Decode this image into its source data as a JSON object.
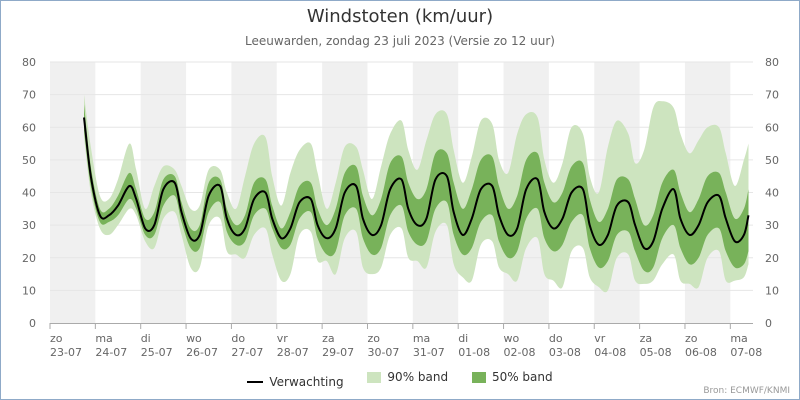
{
  "header": {
    "title": "Windstoten (km/uur)",
    "subtitle": "Leeuwarden, zondag 23 juli 2023 (Versie zo 12 uur)"
  },
  "footer": {
    "source": "Bron: ECMWF/KNMI"
  },
  "colors": {
    "median": "#000000",
    "band90": "#cde4bf",
    "band50": "#78b25a",
    "weekend": "#f0f0f0",
    "grid": "#e6e6e6"
  },
  "chart_data": {
    "type": "area",
    "ylim": [
      0,
      80
    ],
    "yticks": [
      0,
      10,
      20,
      30,
      40,
      50,
      60,
      70,
      80
    ],
    "xlim": [
      0,
      15.5
    ],
    "x_unit": "days from 23-07",
    "xticks": [
      {
        "day": "zo",
        "date": "23-07"
      },
      {
        "day": "ma",
        "date": "24-07"
      },
      {
        "day": "di",
        "date": "25-07"
      },
      {
        "day": "wo",
        "date": "26-07"
      },
      {
        "day": "do",
        "date": "27-07"
      },
      {
        "day": "vr",
        "date": "28-07"
      },
      {
        "day": "za",
        "date": "29-07"
      },
      {
        "day": "zo",
        "date": "30-07"
      },
      {
        "day": "ma",
        "date": "31-07"
      },
      {
        "day": "di",
        "date": "01-08"
      },
      {
        "day": "wo",
        "date": "02-08"
      },
      {
        "day": "do",
        "date": "03-08"
      },
      {
        "day": "vr",
        "date": "04-08"
      },
      {
        "day": "za",
        "date": "05-08"
      },
      {
        "day": "zo",
        "date": "06-08"
      },
      {
        "day": "ma",
        "date": "07-08"
      }
    ],
    "shaded_days": [
      0,
      2,
      4,
      6,
      8,
      10,
      12,
      14
    ],
    "legend": {
      "median": "Verwachting",
      "band90": "90% band",
      "band50": "50% band"
    },
    "series": {
      "x": [
        0.75,
        0.9,
        1.1,
        1.3,
        1.5,
        1.75,
        1.9,
        2.1,
        2.3,
        2.5,
        2.75,
        2.9,
        3.1,
        3.3,
        3.5,
        3.75,
        3.9,
        4.1,
        4.3,
        4.5,
        4.75,
        4.9,
        5.1,
        5.3,
        5.5,
        5.75,
        5.9,
        6.1,
        6.3,
        6.5,
        6.75,
        6.9,
        7.1,
        7.3,
        7.5,
        7.75,
        7.9,
        8.1,
        8.3,
        8.5,
        8.75,
        8.9,
        9.1,
        9.3,
        9.5,
        9.75,
        9.9,
        10.1,
        10.3,
        10.5,
        10.75,
        10.9,
        11.1,
        11.3,
        11.5,
        11.75,
        11.9,
        12.1,
        12.3,
        12.5,
        12.75,
        12.9,
        13.1,
        13.3,
        13.5,
        13.75,
        13.9,
        14.1,
        14.3,
        14.5,
        14.75,
        14.9,
        15.1,
        15.3,
        15.4
      ],
      "median": [
        63,
        45,
        33,
        33,
        36,
        42,
        38,
        29,
        30,
        41,
        43,
        34,
        26,
        27,
        39,
        42,
        32,
        27,
        29,
        38,
        40,
        32,
        26,
        29,
        37,
        38,
        30,
        26,
        29,
        40,
        42,
        32,
        27,
        30,
        41,
        44,
        35,
        30,
        32,
        44,
        45,
        34,
        27,
        32,
        41,
        42,
        33,
        27,
        29,
        41,
        44,
        34,
        29,
        32,
        40,
        41,
        30,
        24,
        27,
        36,
        37,
        30,
        23,
        25,
        35,
        41,
        32,
        27,
        30,
        37,
        39,
        32,
        25,
        27,
        33
      ],
      "p25": [
        59,
        42,
        31,
        31,
        33,
        38,
        35,
        27,
        27,
        36,
        39,
        31,
        23,
        23,
        34,
        37,
        28,
        24,
        25,
        33,
        35,
        29,
        23,
        24,
        32,
        34,
        26,
        21,
        22,
        33,
        35,
        26,
        21,
        23,
        33,
        36,
        28,
        24,
        25,
        35,
        37,
        27,
        21,
        23,
        31,
        33,
        25,
        20,
        22,
        32,
        35,
        26,
        22,
        24,
        31,
        33,
        23,
        17,
        19,
        27,
        28,
        22,
        16,
        17,
        26,
        30,
        23,
        18,
        20,
        27,
        29,
        22,
        17,
        18,
        22
      ],
      "p75": [
        67,
        48,
        35,
        35,
        39,
        46,
        41,
        32,
        34,
        44,
        45,
        37,
        29,
        30,
        43,
        44,
        35,
        30,
        33,
        43,
        44,
        36,
        29,
        34,
        42,
        43,
        35,
        30,
        35,
        46,
        48,
        39,
        33,
        38,
        49,
        51,
        43,
        38,
        41,
        52,
        52,
        43,
        35,
        41,
        50,
        51,
        42,
        35,
        39,
        50,
        52,
        43,
        37,
        40,
        48,
        49,
        38,
        31,
        35,
        44,
        44,
        38,
        30,
        33,
        43,
        47,
        40,
        34,
        38,
        45,
        46,
        40,
        32,
        35,
        41
      ],
      "p05": [
        57,
        40,
        29,
        27,
        30,
        35,
        33,
        25,
        23,
        32,
        34,
        27,
        17,
        17,
        30,
        32,
        22,
        21,
        20,
        27,
        29,
        21,
        13,
        15,
        27,
        28,
        19,
        19,
        15,
        26,
        28,
        17,
        15,
        17,
        27,
        29,
        20,
        19,
        17,
        28,
        30,
        18,
        14,
        13,
        24,
        25,
        17,
        15,
        13,
        23,
        26,
        15,
        13,
        11,
        22,
        23,
        14,
        11,
        10,
        20,
        21,
        13,
        12,
        13,
        18,
        21,
        13,
        12,
        11,
        20,
        22,
        13,
        13,
        14,
        18
      ],
      "p95": [
        70,
        54,
        39,
        38,
        44,
        55,
        47,
        35,
        42,
        48,
        47,
        42,
        35,
        36,
        47,
        47,
        40,
        35,
        45,
        55,
        57,
        45,
        36,
        46,
        53,
        55,
        46,
        35,
        43,
        54,
        54,
        47,
        38,
        48,
        58,
        62,
        53,
        47,
        56,
        64,
        64,
        53,
        43,
        51,
        62,
        61,
        50,
        46,
        58,
        64,
        63,
        50,
        43,
        49,
        60,
        58,
        45,
        40,
        54,
        62,
        58,
        49,
        53,
        66,
        68,
        66,
        58,
        52,
        56,
        60,
        60,
        52,
        42,
        50,
        55
      ]
    }
  }
}
